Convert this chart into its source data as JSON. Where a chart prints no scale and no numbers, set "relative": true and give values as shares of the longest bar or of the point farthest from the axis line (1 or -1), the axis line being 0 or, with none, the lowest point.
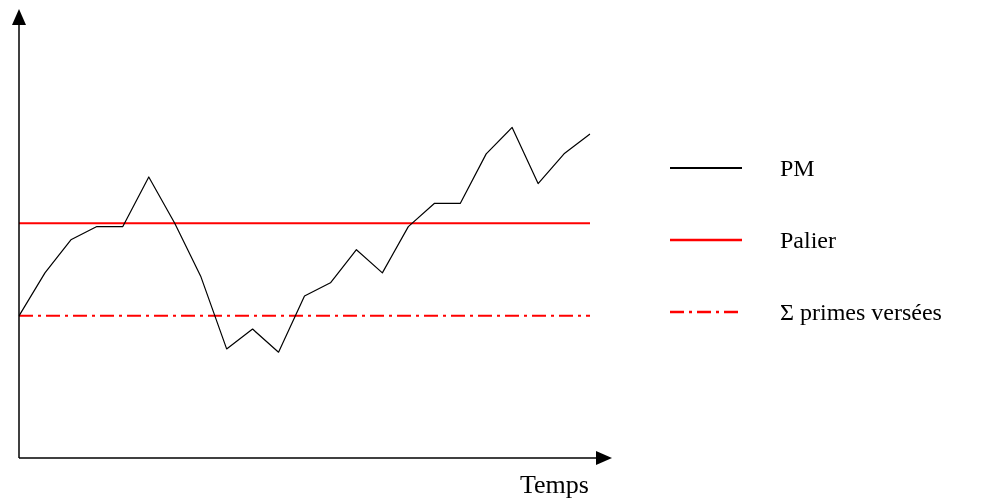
{
  "chart_data": {
    "type": "line",
    "relative": true,
    "xlabel": "Temps",
    "legend": "right",
    "marker": "none",
    "categories": [
      null,
      null,
      null,
      null,
      null,
      null,
      null,
      null,
      null,
      null,
      null,
      null,
      null,
      null,
      null,
      null,
      null,
      null,
      null,
      null,
      null,
      null,
      null
    ],
    "series": [
      {
        "name": "PM",
        "color": "#000000",
        "line_style": "solid",
        "values": [
          0.43,
          0.56,
          0.66,
          0.7,
          0.7,
          0.85,
          0.71,
          0.55,
          0.33,
          0.39,
          0.32,
          0.49,
          0.53,
          0.63,
          0.56,
          0.7,
          0.77,
          0.77,
          0.92,
          1,
          0.83,
          0.92,
          0.98
        ]
      },
      {
        "name": "Palier",
        "color": "#ff0000",
        "line_style": "solid",
        "values": [
          0.71,
          0.71,
          0.71,
          0.71,
          0.71,
          0.71,
          0.71,
          0.71,
          0.71,
          0.71,
          0.71,
          0.71,
          0.71,
          0.71,
          0.71,
          0.71,
          0.71,
          0.71,
          0.71,
          0.71,
          0.71,
          0.71,
          0.71
        ]
      },
      {
        "name": "Σ primes versées",
        "color": "#ff0000",
        "line_style": "dashed",
        "values": [
          0.43,
          0.43,
          0.43,
          0.43,
          0.43,
          0.43,
          0.43,
          0.43,
          0.43,
          0.43,
          0.43,
          0.43,
          0.43,
          0.43,
          0.43,
          0.43,
          0.43,
          0.43,
          0.43,
          0.43,
          0.43,
          0.43,
          0.43
        ]
      }
    ]
  }
}
